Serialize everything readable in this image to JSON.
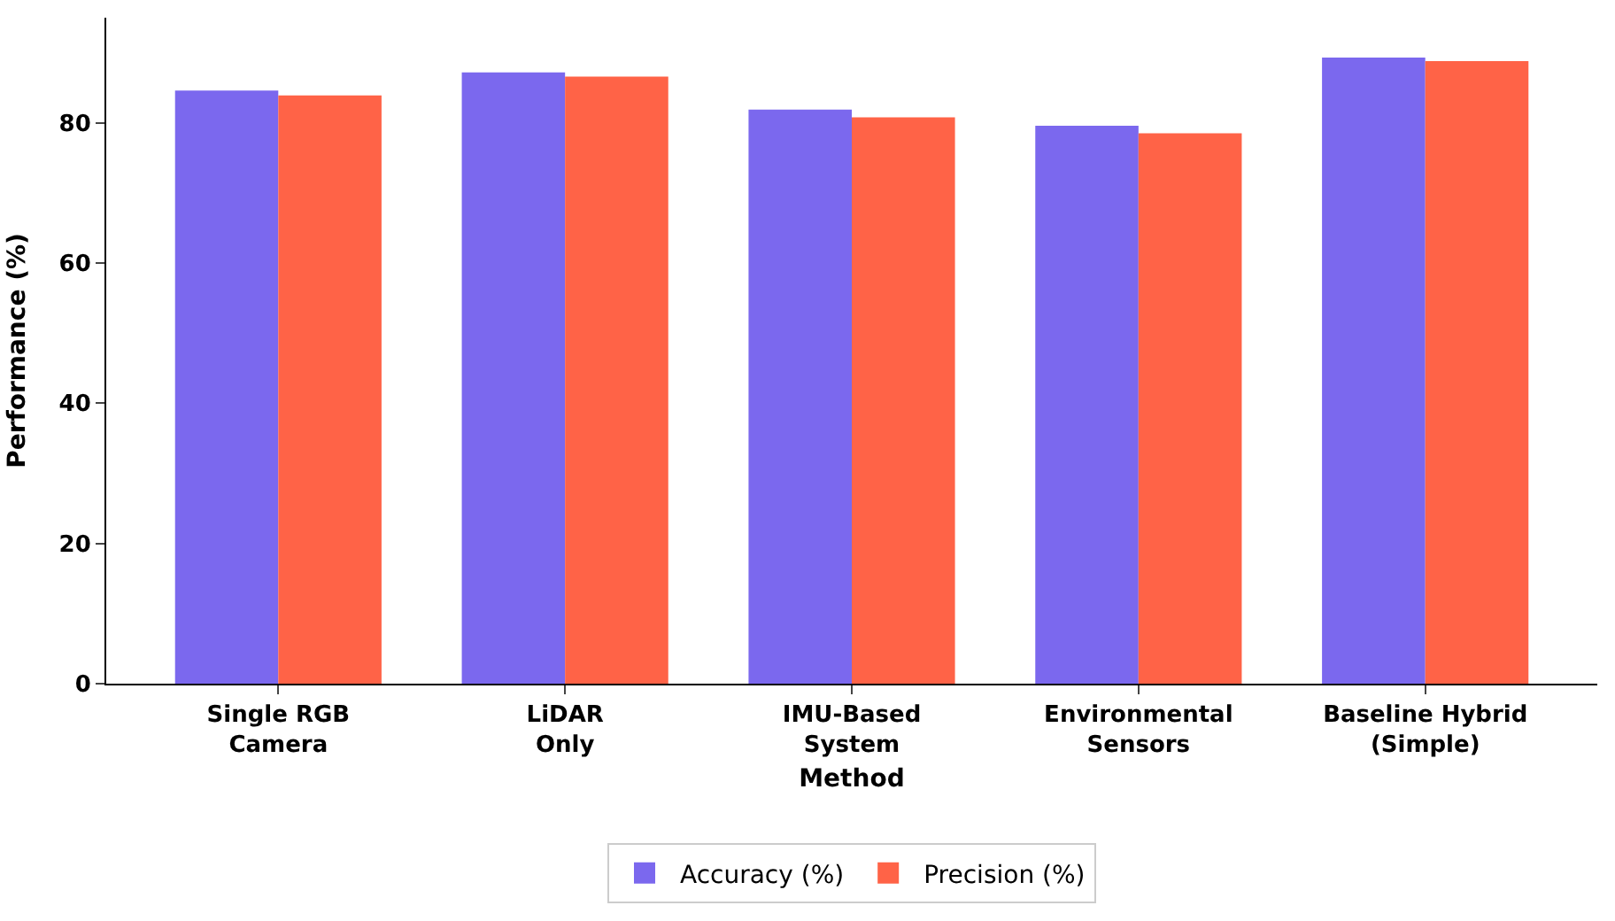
{
  "chart_data": {
    "type": "bar",
    "xlabel": "Method",
    "ylabel": "Performance (%)",
    "categories": [
      "Single RGB\nCamera",
      "LiDAR\nOnly",
      "IMU-Based\nSystem",
      "Environmental\nSensors",
      "Baseline Hybrid\n(Simple)"
    ],
    "series": [
      {
        "name": "Accuracy (%)",
        "color": "#7b68ee",
        "values": [
          84.6,
          87.2,
          81.9,
          79.6,
          89.3
        ]
      },
      {
        "name": "Precision (%)",
        "color": "#ff6347",
        "values": [
          83.9,
          86.6,
          80.8,
          78.5,
          88.8
        ]
      }
    ],
    "ylim": [
      0,
      95
    ],
    "yticks": [
      0,
      20,
      40,
      60,
      80
    ],
    "legend": "bottom"
  }
}
